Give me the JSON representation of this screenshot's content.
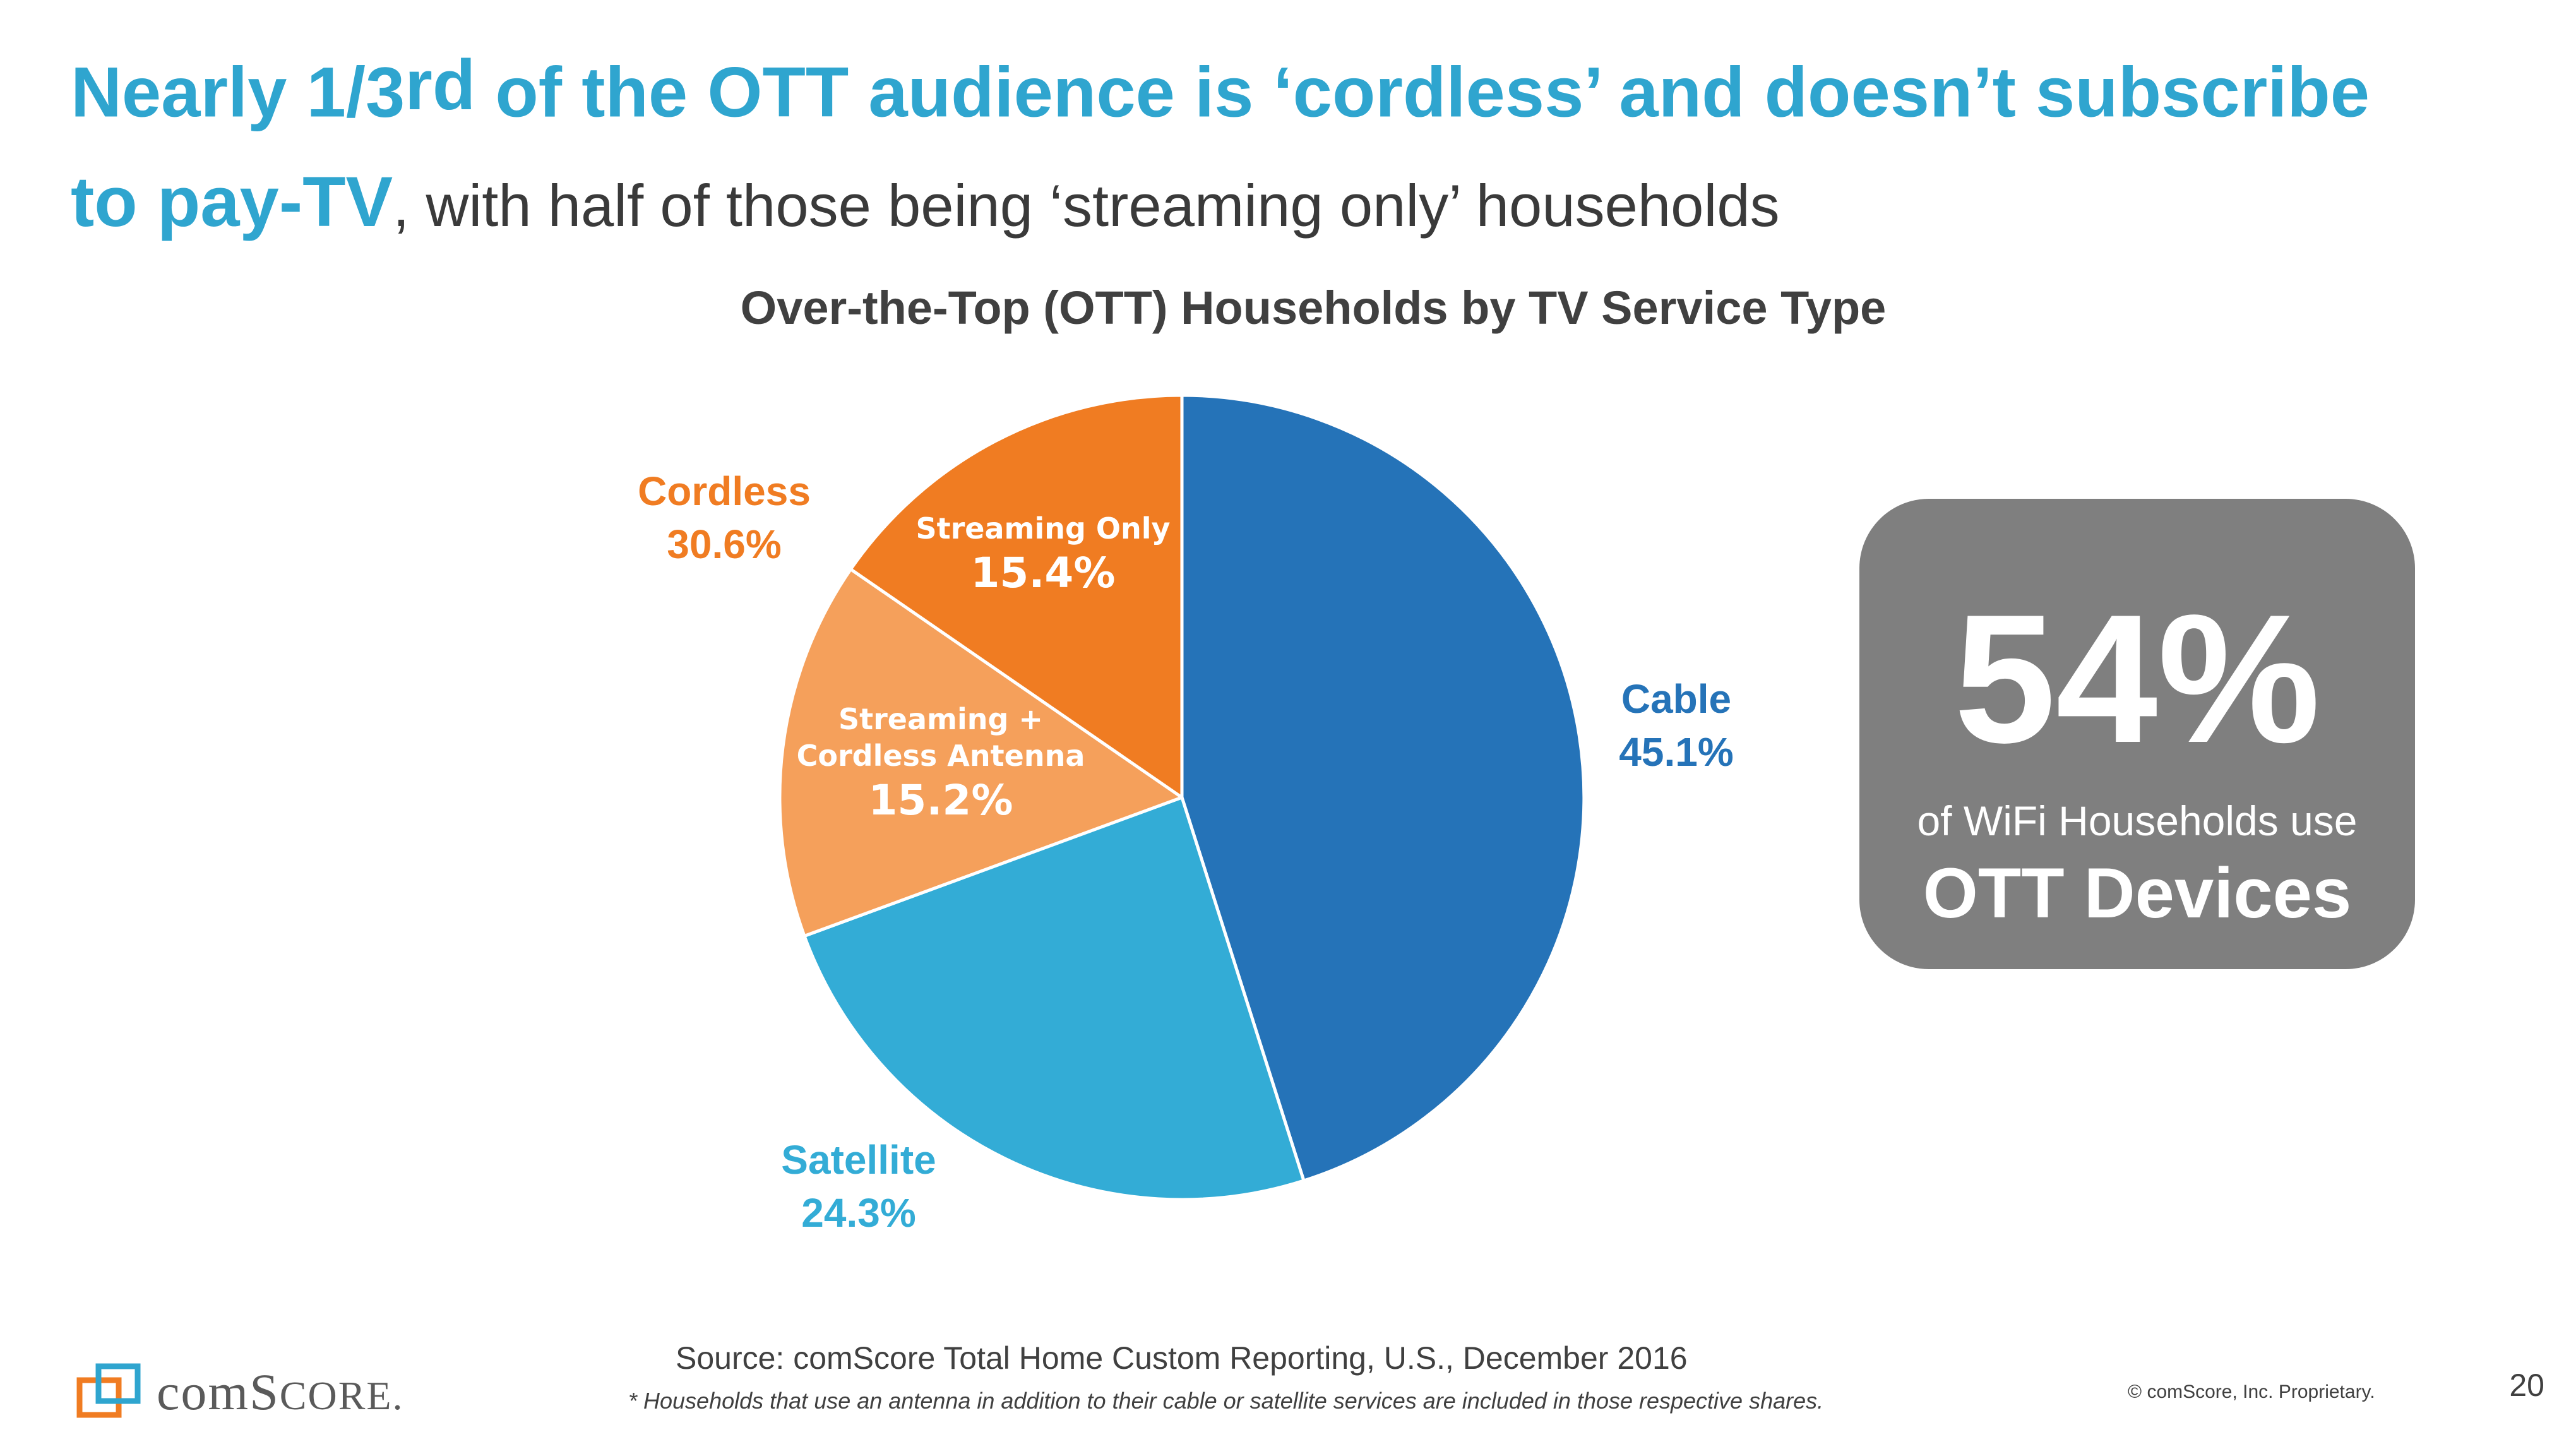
{
  "headline": {
    "part1": "Nearly 1/3",
    "sup": "rd",
    "part2": " of the OTT audience is ‘cordless’ and doesn’t subscribe",
    "part3": "to pay-TV",
    "part4": ", with half of those being ‘streaming only’ households"
  },
  "colors": {
    "headline_blue": "#2fa5cf",
    "cable": "#2573b8",
    "satellite": "#33acd6",
    "streaming_antenna": "#f5a05b",
    "streaming_only": "#f07c22",
    "stat_box": "#7f7f7f"
  },
  "chart_data": {
    "type": "pie",
    "title": "Over-the-Top (OTT) Households by TV Service Type",
    "slices": [
      {
        "key": "cable",
        "label": "Cable",
        "value": 45.1,
        "display": "45.1%"
      },
      {
        "key": "satellite",
        "label": "Satellite",
        "value": 24.3,
        "display": "24.3%"
      },
      {
        "key": "streaming_antenna",
        "label_line1": "Streaming +",
        "label_line2": "Cordless Antenna",
        "value": 15.2,
        "display": "15.2%"
      },
      {
        "key": "streaming_only",
        "label": "Streaming Only",
        "value": 15.4,
        "display": "15.4%"
      }
    ],
    "group_annotation": {
      "label": "Cordless",
      "display": "30.6%"
    }
  },
  "stat_box": {
    "value": "54%",
    "line1": "of WiFi Households use",
    "line2": "OTT Devices"
  },
  "footer": {
    "source": "Source: comScore Total Home Custom Reporting, U.S., December 2016",
    "footnote": "* Households that use an antenna in addition to their cable or satellite services are included in those respective shares.",
    "copyright": "© comScore, Inc. Proprietary.",
    "page_number": "20",
    "logo_text_1": "com",
    "logo_text_2": "S",
    "logo_text_3": "CORE",
    "logo_text_4": "."
  }
}
